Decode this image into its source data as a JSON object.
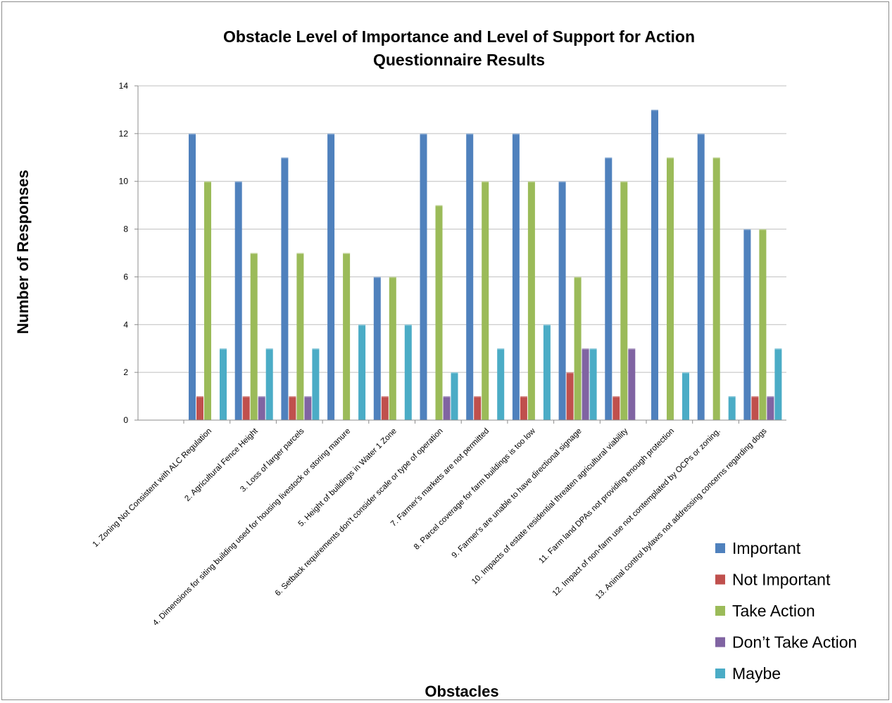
{
  "chart_data": {
    "type": "bar",
    "title": "Obstacle Level of Importance and Level of Support for Action",
    "subtitle": "Questionnaire Results",
    "xlabel": "Obstacles",
    "ylabel": "Number of Responses",
    "ylim": [
      0,
      14
    ],
    "yticks": [
      0,
      2,
      4,
      6,
      8,
      10,
      12,
      14
    ],
    "grid": true,
    "legend_position": "bottom-right",
    "categories": [
      "1. Zoning Not Consistent with ALC Regulation",
      "2. Agricultural Fence Height",
      "3. Loss of larger parcels",
      "4. Dimensions for siting building used for housing livestock or storing manure",
      "5. Height of buildings in Water 1 Zone",
      "6. Setback requirements don't consider scale or type of operation",
      "7. Farmer's markets are not permitted",
      "8. Parcel coverage for farm buildings is too low",
      "9. Farmer's are unable to have directional signage",
      "10. Impacts of estate residential threaten agricultural viability",
      "11. Farm land DPAs not providing enough protection",
      "12. Impact of non-farm use not contemplated by OCPs or zoning.",
      "13. Animal control bylaws not addressing concerns regarding dogs"
    ],
    "series": [
      {
        "name": "Important",
        "color": "#4F81BD",
        "values": [
          12,
          10,
          11,
          12,
          6,
          12,
          12,
          12,
          10,
          11,
          13,
          12,
          8
        ]
      },
      {
        "name": "Not Important",
        "color": "#C0504D",
        "values": [
          1,
          1,
          1,
          0,
          1,
          0,
          1,
          1,
          2,
          1,
          0,
          0,
          1
        ]
      },
      {
        "name": "Take Action",
        "color": "#9BBB59",
        "values": [
          10,
          7,
          7,
          7,
          6,
          9,
          10,
          10,
          6,
          10,
          11,
          11,
          8
        ]
      },
      {
        "name": "Don’t Take Action",
        "color": "#8064A2",
        "values": [
          0,
          1,
          1,
          0,
          0,
          1,
          0,
          0,
          3,
          3,
          0,
          0,
          1
        ]
      },
      {
        "name": "Maybe",
        "color": "#4BACC6",
        "values": [
          3,
          3,
          3,
          4,
          4,
          2,
          3,
          4,
          3,
          0,
          2,
          1,
          3
        ]
      }
    ]
  }
}
